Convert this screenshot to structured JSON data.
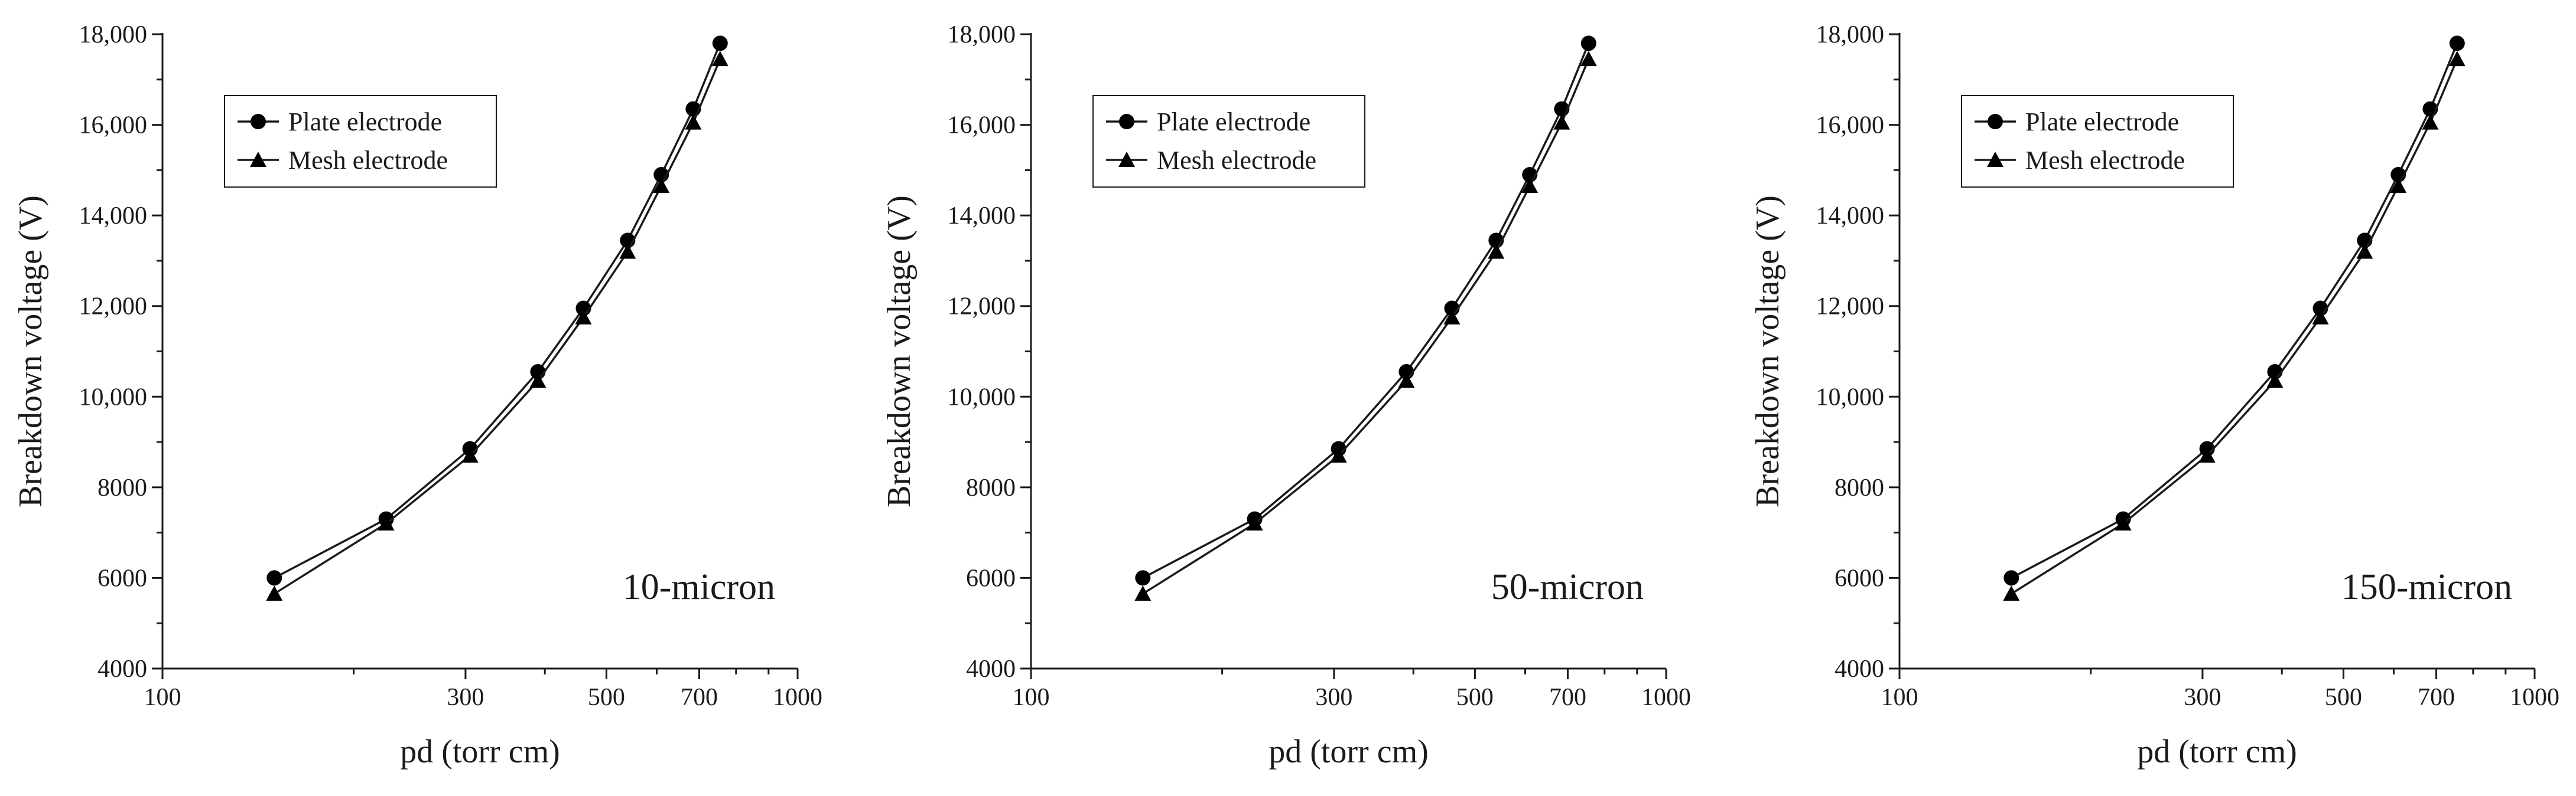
{
  "chart_data": [
    {
      "type": "line",
      "panel_label": "10-micron",
      "xlabel": "pd (torr cm)",
      "ylabel": "Breakdown voltage (V)",
      "xscale": "log",
      "xlim": [
        100,
        1000
      ],
      "ylim": [
        4000,
        18000
      ],
      "x_ticks": [
        100,
        300,
        500,
        700,
        1000
      ],
      "x_tick_labels": [
        "100",
        "300",
        "500",
        "700",
        "1000"
      ],
      "y_ticks": [
        4000,
        6000,
        8000,
        10000,
        12000,
        14000,
        16000,
        18000
      ],
      "y_tick_labels": [
        "4000",
        "6000",
        "8000",
        "10,000",
        "12,000",
        "14,000",
        "16,000",
        "18,000"
      ],
      "legend_position": "top-left",
      "series": [
        {
          "name": "Plate electrode",
          "marker": "circle",
          "x": [
            150,
            225,
            305,
            390,
            460,
            540,
            610,
            685,
            755
          ],
          "values": [
            6000,
            7300,
            8850,
            10550,
            11950,
            13450,
            14900,
            16350,
            17800
          ]
        },
        {
          "name": "Mesh electrode",
          "marker": "triangle",
          "x": [
            150,
            225,
            305,
            390,
            460,
            540,
            610,
            685,
            755
          ],
          "values": [
            5650,
            7200,
            8700,
            10350,
            11750,
            13200,
            14650,
            16050,
            17450
          ]
        }
      ]
    },
    {
      "type": "line",
      "panel_label": "50-micron",
      "xlabel": "pd (torr cm)",
      "ylabel": "Breakdown voltage (V)",
      "xscale": "log",
      "xlim": [
        100,
        1000
      ],
      "ylim": [
        4000,
        18000
      ],
      "x_ticks": [
        100,
        300,
        500,
        700,
        1000
      ],
      "x_tick_labels": [
        "100",
        "300",
        "500",
        "700",
        "1000"
      ],
      "y_ticks": [
        4000,
        6000,
        8000,
        10000,
        12000,
        14000,
        16000,
        18000
      ],
      "y_tick_labels": [
        "4000",
        "6000",
        "8000",
        "10,000",
        "12,000",
        "14,000",
        "16,000",
        "18,000"
      ],
      "legend_position": "top-left",
      "series": [
        {
          "name": "Plate electrode",
          "marker": "circle",
          "x": [
            150,
            225,
            305,
            390,
            460,
            540,
            610,
            685,
            755
          ],
          "values": [
            6000,
            7300,
            8850,
            10550,
            11950,
            13450,
            14900,
            16350,
            17800
          ]
        },
        {
          "name": "Mesh electrode",
          "marker": "triangle",
          "x": [
            150,
            225,
            305,
            390,
            460,
            540,
            610,
            685,
            755
          ],
          "values": [
            5650,
            7200,
            8700,
            10350,
            11750,
            13200,
            14650,
            16050,
            17450
          ]
        }
      ]
    },
    {
      "type": "line",
      "panel_label": "150-micron",
      "xlabel": "pd (torr cm)",
      "ylabel": "Breakdown voltage (V)",
      "xscale": "log",
      "xlim": [
        100,
        1000
      ],
      "ylim": [
        4000,
        18000
      ],
      "x_ticks": [
        100,
        300,
        500,
        700,
        1000
      ],
      "x_tick_labels": [
        "100",
        "300",
        "500",
        "700",
        "1000"
      ],
      "y_ticks": [
        4000,
        6000,
        8000,
        10000,
        12000,
        14000,
        16000,
        18000
      ],
      "y_tick_labels": [
        "4000",
        "6000",
        "8000",
        "10,000",
        "12,000",
        "14,000",
        "16,000",
        "18,000"
      ],
      "legend_position": "top-left",
      "series": [
        {
          "name": "Plate electrode",
          "marker": "circle",
          "x": [
            150,
            225,
            305,
            390,
            460,
            540,
            610,
            685,
            755
          ],
          "values": [
            6000,
            7300,
            8850,
            10550,
            11950,
            13450,
            14900,
            16350,
            17800
          ]
        },
        {
          "name": "Mesh electrode",
          "marker": "triangle",
          "x": [
            150,
            225,
            305,
            390,
            460,
            540,
            610,
            685,
            755
          ],
          "values": [
            5650,
            7200,
            8700,
            10350,
            11750,
            13200,
            14650,
            16050,
            17450
          ]
        }
      ]
    }
  ]
}
